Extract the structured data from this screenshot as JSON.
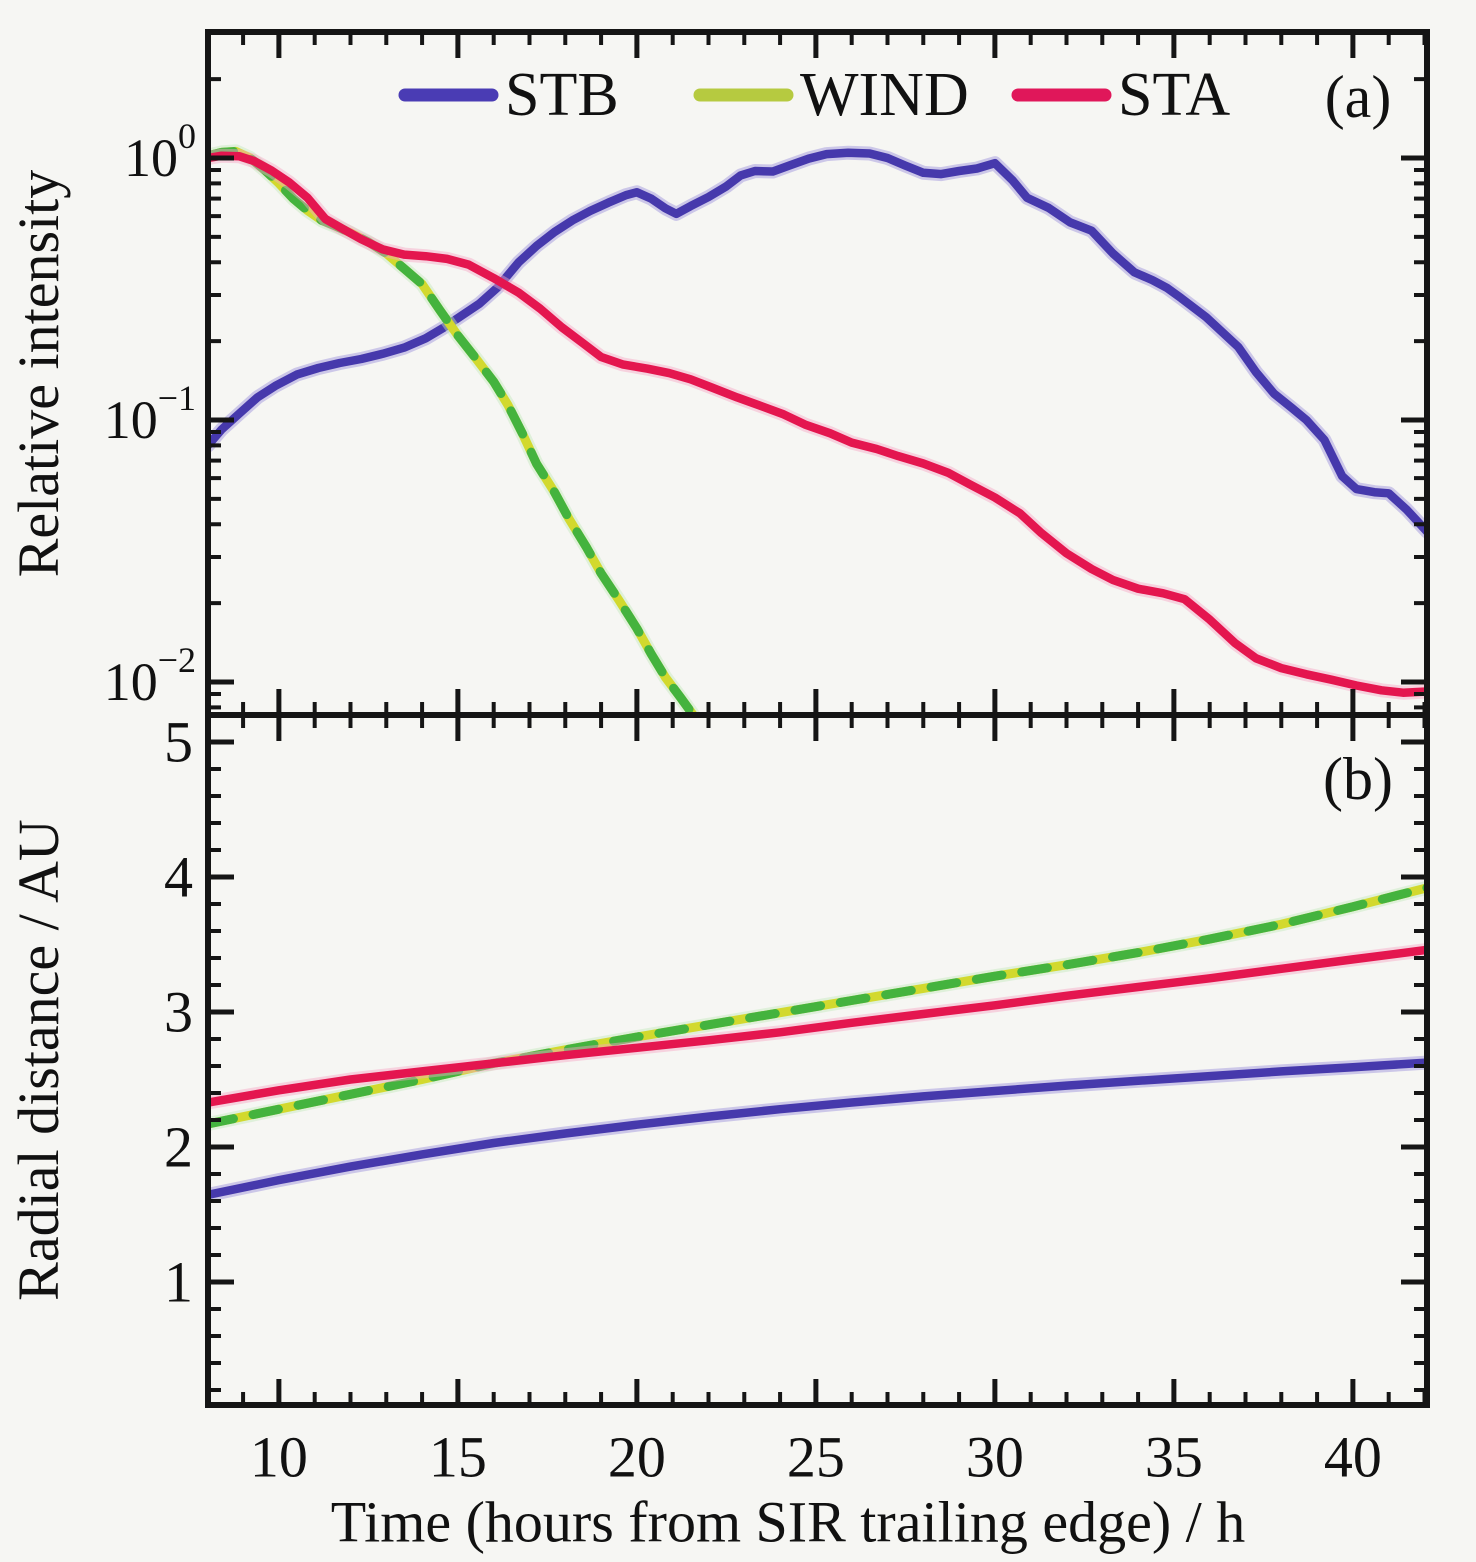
{
  "figure": {
    "x_axis": {
      "title": "Time (hours from SIR trailing edge) / h",
      "ticks": [
        10,
        15,
        20,
        25,
        30,
        35,
        40
      ],
      "minor_step": 1,
      "range": [
        8.02,
        42.07
      ]
    },
    "legend": [
      {
        "label": "STB",
        "color": "#4a3cb4"
      },
      {
        "label": "WIND",
        "color": "#b6ca40"
      },
      {
        "label": "STA",
        "color": "#e0175a"
      }
    ],
    "panel_a": {
      "label": "(a)",
      "y_label": "Relative intensity",
      "y_scale": "log",
      "y_range": [
        0.0074,
        3.02
      ],
      "y_major_ticks": [
        1,
        0.1,
        0.01
      ],
      "y_tick_labels": [
        {
          "base": "10",
          "exp": "0"
        },
        {
          "base": "10",
          "exp": "−1"
        },
        {
          "base": "10",
          "exp": "−2"
        }
      ]
    },
    "panel_b": {
      "label": "(b)",
      "y_label": "Radial distance / AU",
      "y_scale": "linear",
      "y_range": [
        0.09,
        5.2
      ],
      "ticks": [
        5,
        4,
        3,
        2,
        1
      ],
      "minor_step": 0.2
    }
  },
  "chart_data": [
    {
      "id": "panel_a",
      "type": "line",
      "title": "(a)",
      "xlabel": "Time (hours from SIR trailing edge) / h",
      "ylabel": "Relative intensity",
      "y_scale": "log",
      "ylim": [
        0.0074,
        3.02
      ],
      "xlim": [
        8.02,
        42.07
      ],
      "legend_position": "top-inside",
      "grid": false,
      "series": [
        {
          "name": "STB",
          "color": "#4639ac",
          "halo": "#9a8fdb",
          "points": [
            [
              8.02,
              0.08
            ],
            [
              8.4,
              0.092
            ],
            [
              8.9,
              0.106
            ],
            [
              9.4,
              0.122
            ],
            [
              9.9,
              0.135
            ],
            [
              10.5,
              0.149
            ],
            [
              11.1,
              0.158
            ],
            [
              11.7,
              0.165
            ],
            [
              12.3,
              0.171
            ],
            [
              12.9,
              0.179
            ],
            [
              13.5,
              0.189
            ],
            [
              14.1,
              0.205
            ],
            [
              14.6,
              0.225
            ],
            [
              15.1,
              0.25
            ],
            [
              15.6,
              0.278
            ],
            [
              16.1,
              0.32
            ],
            [
              16.7,
              0.4
            ],
            [
              17.2,
              0.462
            ],
            [
              17.7,
              0.522
            ],
            [
              18.2,
              0.578
            ],
            [
              18.7,
              0.628
            ],
            [
              19.2,
              0.675
            ],
            [
              19.7,
              0.722
            ],
            [
              20.0,
              0.74
            ],
            [
              20.4,
              0.7
            ],
            [
              20.8,
              0.642
            ],
            [
              21.1,
              0.612
            ],
            [
              21.5,
              0.655
            ],
            [
              22.0,
              0.71
            ],
            [
              22.5,
              0.78
            ],
            [
              22.9,
              0.858
            ],
            [
              23.3,
              0.892
            ],
            [
              23.8,
              0.888
            ],
            [
              24.3,
              0.94
            ],
            [
              24.8,
              0.995
            ],
            [
              25.3,
              1.035
            ],
            [
              25.9,
              1.048
            ],
            [
              26.5,
              1.04
            ],
            [
              27.0,
              1.0
            ],
            [
              27.5,
              0.935
            ],
            [
              28.0,
              0.878
            ],
            [
              28.5,
              0.868
            ],
            [
              29.0,
              0.892
            ],
            [
              29.5,
              0.912
            ],
            [
              30.0,
              0.955
            ],
            [
              30.5,
              0.82
            ],
            [
              30.9,
              0.705
            ],
            [
              31.5,
              0.645
            ],
            [
              32.1,
              0.568
            ],
            [
              32.7,
              0.528
            ],
            [
              33.3,
              0.432
            ],
            [
              33.9,
              0.366
            ],
            [
              34.4,
              0.342
            ],
            [
              34.8,
              0.32
            ],
            [
              35.2,
              0.292
            ],
            [
              35.9,
              0.247
            ],
            [
              36.8,
              0.19
            ],
            [
              37.3,
              0.152
            ],
            [
              37.8,
              0.126
            ],
            [
              38.3,
              0.111
            ],
            [
              38.7,
              0.1
            ],
            [
              39.2,
              0.084
            ],
            [
              39.7,
              0.061
            ],
            [
              40.1,
              0.0545
            ],
            [
              40.6,
              0.053
            ],
            [
              41.0,
              0.0525
            ],
            [
              41.5,
              0.0455
            ],
            [
              42.07,
              0.0375
            ]
          ]
        },
        {
          "name": "WIND",
          "color": "#44b33e",
          "color2": "#d2d92e",
          "halo": "#c4e9bc",
          "points": [
            [
              8.02,
              1.02
            ],
            [
              8.4,
              1.05
            ],
            [
              8.8,
              1.06
            ],
            [
              9.2,
              1.0
            ],
            [
              9.6,
              0.9
            ],
            [
              10.0,
              0.8
            ],
            [
              10.4,
              0.7
            ],
            [
              10.8,
              0.63
            ],
            [
              11.2,
              0.578
            ],
            [
              11.6,
              0.548
            ],
            [
              12.0,
              0.518
            ],
            [
              12.5,
              0.478
            ],
            [
              13.0,
              0.432
            ],
            [
              13.5,
              0.378
            ],
            [
              14.0,
              0.33
            ],
            [
              14.5,
              0.262
            ],
            [
              15.0,
              0.21
            ],
            [
              15.5,
              0.172
            ],
            [
              16.0,
              0.14
            ],
            [
              16.4,
              0.114
            ],
            [
              16.8,
              0.089
            ],
            [
              17.2,
              0.068
            ],
            [
              17.7,
              0.053
            ],
            [
              18.1,
              0.042
            ],
            [
              18.6,
              0.0325
            ],
            [
              19.0,
              0.026
            ],
            [
              19.5,
              0.0205
            ],
            [
              20.0,
              0.016
            ],
            [
              20.4,
              0.0128
            ],
            [
              20.8,
              0.0104
            ],
            [
              21.2,
              0.0088
            ],
            [
              21.6,
              0.0074
            ],
            [
              21.9,
              0.0062
            ]
          ]
        },
        {
          "name": "STA",
          "color": "#e4164f",
          "halo": "#f6a7c6",
          "points": [
            [
              8.02,
              1.0
            ],
            [
              8.4,
              1.02
            ],
            [
              8.9,
              1.015
            ],
            [
              9.3,
              0.975
            ],
            [
              9.8,
              0.895
            ],
            [
              10.3,
              0.805
            ],
            [
              10.8,
              0.705
            ],
            [
              11.3,
              0.585
            ],
            [
              11.8,
              0.535
            ],
            [
              12.3,
              0.49
            ],
            [
              12.9,
              0.448
            ],
            [
              13.5,
              0.428
            ],
            [
              14.1,
              0.422
            ],
            [
              14.7,
              0.412
            ],
            [
              15.3,
              0.392
            ],
            [
              16.0,
              0.348
            ],
            [
              16.7,
              0.306
            ],
            [
              17.3,
              0.266
            ],
            [
              17.9,
              0.226
            ],
            [
              18.5,
              0.196
            ],
            [
              19.0,
              0.174
            ],
            [
              19.6,
              0.163
            ],
            [
              20.3,
              0.157
            ],
            [
              20.9,
              0.151
            ],
            [
              21.5,
              0.143
            ],
            [
              22.1,
              0.133
            ],
            [
              22.8,
              0.122
            ],
            [
              23.4,
              0.114
            ],
            [
              24.1,
              0.105
            ],
            [
              24.7,
              0.096
            ],
            [
              25.4,
              0.089
            ],
            [
              26.0,
              0.082
            ],
            [
              26.7,
              0.0775
            ],
            [
              27.3,
              0.0728
            ],
            [
              28.0,
              0.0682
            ],
            [
              28.7,
              0.0628
            ],
            [
              29.3,
              0.0568
            ],
            [
              30.0,
              0.0506
            ],
            [
              30.7,
              0.044
            ],
            [
              31.3,
              0.037
            ],
            [
              32.0,
              0.031
            ],
            [
              32.7,
              0.027
            ],
            [
              33.3,
              0.0245
            ],
            [
              34.0,
              0.0227
            ],
            [
              34.7,
              0.0218
            ],
            [
              35.3,
              0.0207
            ],
            [
              36.0,
              0.0173
            ],
            [
              36.7,
              0.0141
            ],
            [
              37.3,
              0.0123
            ],
            [
              38.0,
              0.0113
            ],
            [
              38.7,
              0.0107
            ],
            [
              39.4,
              0.0102
            ],
            [
              40.1,
              0.0097
            ],
            [
              40.8,
              0.0093
            ],
            [
              41.4,
              0.0091
            ],
            [
              42.07,
              0.0092
            ]
          ]
        }
      ]
    },
    {
      "id": "panel_b",
      "type": "line",
      "title": "(b)",
      "xlabel": "Time (hours from SIR trailing edge) / h",
      "ylabel": "Radial distance / AU",
      "y_scale": "linear",
      "ylim": [
        0.09,
        5.2
      ],
      "xlim": [
        8.02,
        42.07
      ],
      "grid": false,
      "series": [
        {
          "name": "STB",
          "color": "#4639ac",
          "halo": "#9a8fdb",
          "points": [
            [
              8.02,
              1.645
            ],
            [
              10,
              1.755
            ],
            [
              12,
              1.855
            ],
            [
              14,
              1.945
            ],
            [
              16,
              2.03
            ],
            [
              18,
              2.1
            ],
            [
              20,
              2.165
            ],
            [
              22,
              2.225
            ],
            [
              24,
              2.28
            ],
            [
              26,
              2.33
            ],
            [
              28,
              2.375
            ],
            [
              30,
              2.415
            ],
            [
              32,
              2.455
            ],
            [
              34,
              2.49
            ],
            [
              36,
              2.525
            ],
            [
              38,
              2.56
            ],
            [
              40,
              2.59
            ],
            [
              42.07,
              2.625
            ]
          ]
        },
        {
          "name": "WIND",
          "color": "#44b33e",
          "color2": "#d2d92e",
          "halo": "#c4e9bc",
          "points": [
            [
              8.02,
              2.17
            ],
            [
              10,
              2.28
            ],
            [
              12,
              2.39
            ],
            [
              14,
              2.5
            ],
            [
              16,
              2.62
            ],
            [
              18,
              2.72
            ],
            [
              20,
              2.815
            ],
            [
              22,
              2.905
            ],
            [
              24,
              2.995
            ],
            [
              26,
              3.085
            ],
            [
              28,
              3.175
            ],
            [
              30,
              3.265
            ],
            [
              32,
              3.35
            ],
            [
              34,
              3.44
            ],
            [
              36,
              3.54
            ],
            [
              38,
              3.65
            ],
            [
              40,
              3.78
            ],
            [
              42.07,
              3.92
            ]
          ]
        },
        {
          "name": "STA",
          "color": "#e4164f",
          "halo": "#f6a7c6",
          "points": [
            [
              8.02,
              2.33
            ],
            [
              10,
              2.42
            ],
            [
              12,
              2.5
            ],
            [
              14,
              2.56
            ],
            [
              16,
              2.62
            ],
            [
              18,
              2.68
            ],
            [
              20,
              2.735
            ],
            [
              22,
              2.79
            ],
            [
              24,
              2.85
            ],
            [
              26,
              2.92
            ],
            [
              28,
              2.985
            ],
            [
              30,
              3.05
            ],
            [
              32,
              3.12
            ],
            [
              34,
              3.185
            ],
            [
              36,
              3.25
            ],
            [
              38,
              3.32
            ],
            [
              40,
              3.39
            ],
            [
              42.07,
              3.46
            ]
          ]
        }
      ]
    }
  ]
}
